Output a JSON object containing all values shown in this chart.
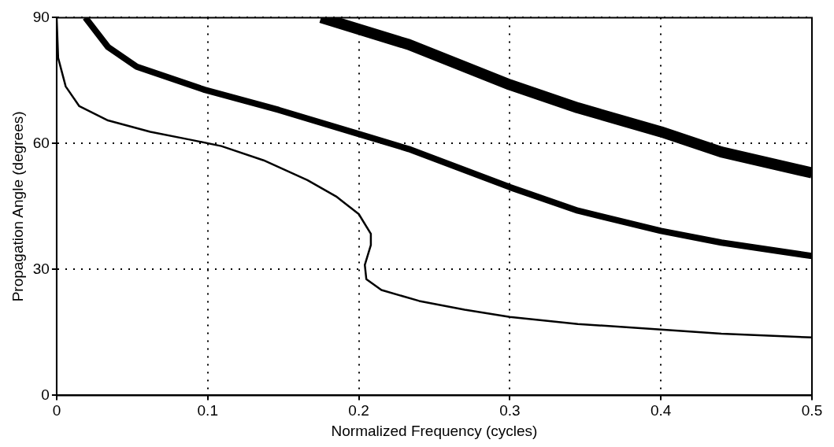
{
  "chart_data": {
    "type": "line",
    "xlabel": "Normalized Frequency (cycles)",
    "ylabel": "Propagation Angle (degrees)",
    "xlim": [
      0,
      0.5
    ],
    "ylim": [
      0,
      90
    ],
    "xticks": [
      0,
      0.1,
      0.2,
      0.3,
      0.4,
      0.5
    ],
    "yticks": [
      0,
      30,
      60,
      90
    ],
    "grid": true,
    "legend": false,
    "marker": "none",
    "line_style": "solid",
    "series": [
      {
        "color": "#000000",
        "x": [
          0,
          0.001,
          0.006,
          0.015,
          0.034,
          0.062,
          0.09,
          0.109,
          0.137,
          0.166,
          0.185,
          0.2,
          0.208,
          0.208,
          0.204,
          0.205,
          0.215,
          0.24,
          0.27,
          0.3,
          0.345,
          0.4,
          0.44,
          0.5
        ],
        "values": [
          90,
          80.4,
          73.6,
          68.9,
          65.5,
          62.8,
          60.8,
          59.4,
          56,
          51.3,
          47.4,
          43.2,
          38.5,
          35.8,
          31.1,
          27.7,
          25.1,
          22.5,
          20.4,
          18.7,
          17,
          15.7,
          14.7,
          13.8
        ]
      },
      {
        "color": "#000000",
        "x": [
          0.019,
          0.034,
          0.053,
          0.098,
          0.147,
          0.198,
          0.233,
          0.3,
          0.345,
          0.4,
          0.44,
          0.5
        ],
        "values": [
          90,
          83,
          78.3,
          72.8,
          68,
          62.5,
          58.7,
          49.6,
          44,
          39.2,
          36.4,
          33.2
        ]
      },
      {
        "color": "#000000",
        "x": [
          0.175,
          0.233,
          0.3,
          0.345,
          0.4,
          0.44,
          0.5
        ],
        "values": [
          90,
          83.6,
          74,
          68.5,
          62.8,
          58,
          53
        ]
      }
    ]
  }
}
